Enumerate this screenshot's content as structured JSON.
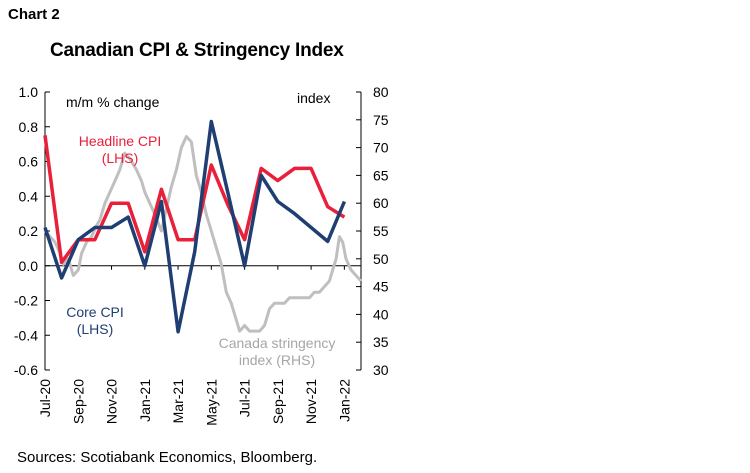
{
  "header": {
    "chart_label": "Chart 2",
    "title": "Canadian CPI & Stringency Index",
    "source": "Sources: Scotiabank Economics, Bloomberg."
  },
  "colors": {
    "headline": "#e8203a",
    "core": "#1f3f73",
    "stringency": "#bfbfbf",
    "axis": "#000000"
  },
  "chart_data": {
    "type": "line",
    "title": "Canadian CPI & Stringency Index",
    "left_axis": {
      "label": "m/m % change",
      "ylim": [
        -0.6,
        1.0
      ],
      "ticks": [
        "1.0",
        "0.8",
        "0.6",
        "0.4",
        "0.2",
        "0.0",
        "-0.2",
        "-0.4",
        "-0.6"
      ]
    },
    "right_axis": {
      "label": "index",
      "ylim": [
        30,
        80
      ],
      "ticks": [
        "80",
        "75",
        "70",
        "65",
        "60",
        "55",
        "50",
        "45",
        "40",
        "35",
        "30"
      ]
    },
    "x_ticks": [
      "Jul-20",
      "Sep-20",
      "Nov-20",
      "Jan-21",
      "Mar-21",
      "May-21",
      "Jul-21",
      "Sep-21",
      "Nov-21",
      "Jan-22"
    ],
    "x_range_months": [
      0,
      19
    ],
    "legend": "inline annotations",
    "annotations": {
      "headline": [
        "Headline CPI",
        "(LHS)"
      ],
      "core": [
        "Core CPI",
        "(LHS)"
      ],
      "stringency": [
        "Canada stringency",
        "index (RHS)"
      ]
    },
    "series": [
      {
        "name": "Headline CPI (LHS)",
        "axis": "left",
        "x": [
          0,
          1,
          2,
          3,
          4,
          5,
          6,
          7,
          8,
          9,
          10,
          11,
          12,
          13,
          14,
          15,
          16,
          17,
          18
        ],
        "values": [
          0.75,
          0.02,
          0.15,
          0.15,
          0.36,
          0.36,
          0.08,
          0.44,
          0.15,
          0.15,
          0.58,
          0.35,
          0.15,
          0.56,
          0.49,
          0.56,
          0.56,
          0.34,
          0.28
        ]
      },
      {
        "name": "Core CPI (LHS)",
        "axis": "left",
        "x": [
          0,
          1,
          2,
          3,
          4,
          5,
          6,
          7,
          8,
          9,
          10,
          11,
          12,
          13,
          14,
          15,
          16,
          17,
          18
        ],
        "values": [
          0.22,
          -0.07,
          0.15,
          0.22,
          0.22,
          0.28,
          0.0,
          0.37,
          -0.38,
          0.08,
          0.83,
          0.42,
          0.0,
          0.52,
          0.37,
          0.3,
          0.22,
          0.14,
          0.37
        ]
      },
      {
        "name": "Canada stringency index (RHS)",
        "axis": "right",
        "x": [
          0,
          0.3,
          0.6,
          0.9,
          1.1,
          1.4,
          1.7,
          2.0,
          2.2,
          2.5,
          2.8,
          3.1,
          3.3,
          3.6,
          3.9,
          4.2,
          4.5,
          4.8,
          5.1,
          5.5,
          5.8,
          6.0,
          6.3,
          6.6,
          7.0,
          7.3,
          7.6,
          7.9,
          8.2,
          8.5,
          8.8,
          9.1,
          9.4,
          9.7,
          10.0,
          10.3,
          10.6,
          10.9,
          11.2,
          11.5,
          11.7,
          12.0,
          12.3,
          12.6,
          12.9,
          13.2,
          13.5,
          13.8,
          14.1,
          14.4,
          14.7,
          15.0,
          15.3,
          15.6,
          15.9,
          16.2,
          16.5,
          16.8,
          17.1,
          17.3,
          17.5,
          17.7,
          17.9,
          18.1,
          18.4,
          18.7,
          19.0
        ],
        "values": [
          55,
          54,
          53,
          51,
          49,
          50,
          47,
          48,
          51,
          53,
          54,
          56,
          57,
          60,
          62,
          64,
          66,
          69,
          68,
          66,
          64,
          62,
          60,
          58,
          55,
          59,
          63,
          66,
          70,
          72,
          71,
          65,
          62,
          58,
          55,
          52,
          49,
          44,
          42,
          39,
          37,
          38,
          37,
          37,
          37,
          38,
          41,
          42,
          42,
          42,
          43,
          43,
          43,
          43,
          43,
          44,
          44,
          45,
          46,
          48,
          50,
          54,
          53,
          50,
          48,
          47,
          46
        ]
      }
    ]
  }
}
